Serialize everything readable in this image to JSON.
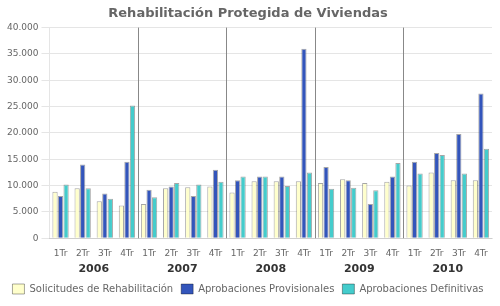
{
  "chart_data": {
    "type": "bar",
    "title": "Rehabilitación Protegida de Viviendas",
    "categories": [
      "1Tr",
      "2Tr",
      "3Tr",
      "4Tr",
      "1Tr",
      "2Tr",
      "3Tr",
      "4Tr",
      "1Tr",
      "2Tr",
      "3Tr",
      "4Tr",
      "1Tr",
      "2Tr",
      "3Tr",
      "4Tr",
      "1Tr",
      "2Tr",
      "3Tr",
      "4Tr"
    ],
    "annotations": [
      "2006",
      "2007",
      "2008",
      "2009",
      "2010"
    ],
    "series": [
      {
        "name": "Solicitudes de Rehabilitación",
        "color": "#FFFFCC",
        "values": [
          8800,
          9500,
          7000,
          6200,
          6500,
          9500,
          9700,
          9800,
          8700,
          10800,
          10800,
          10800,
          10500,
          11200,
          10500,
          10700,
          10000,
          12500,
          11000,
          11000
        ]
      },
      {
        "name": "Aprobaciones Provisionales",
        "color": "#3355BB",
        "values": [
          8000,
          14000,
          8500,
          14500,
          9200,
          9800,
          8000,
          13000,
          11000,
          11700,
          11700,
          36000,
          13500,
          11000,
          6500,
          11700,
          14500,
          16200,
          19800,
          27500
        ]
      },
      {
        "name": "Aprobaciones Definitivas",
        "color": "#44CCCC",
        "values": [
          10200,
          9500,
          7500,
          25200,
          7800,
          10500,
          10200,
          10700,
          11700,
          11700,
          9900,
          12500,
          9400,
          9600,
          9100,
          14300,
          12300,
          15800,
          12300,
          17000
        ]
      }
    ],
    "ylim": [
      0,
      40000
    ],
    "yticks": [
      0,
      {
        "value": 5000,
        "label": "5.000"
      },
      {
        "value": 10000,
        "label": "10.000"
      },
      {
        "value": 15000,
        "label": "15.000"
      },
      {
        "value": 20000,
        "label": "20.000"
      },
      {
        "value": 25000,
        "label": "25.000"
      },
      {
        "value": 30000,
        "label": "30.000"
      },
      {
        "value": 35000,
        "label": "35.000"
      },
      {
        "value": 40000,
        "label": "40.000"
      }
    ],
    "grid": true,
    "legend": "bottom"
  }
}
